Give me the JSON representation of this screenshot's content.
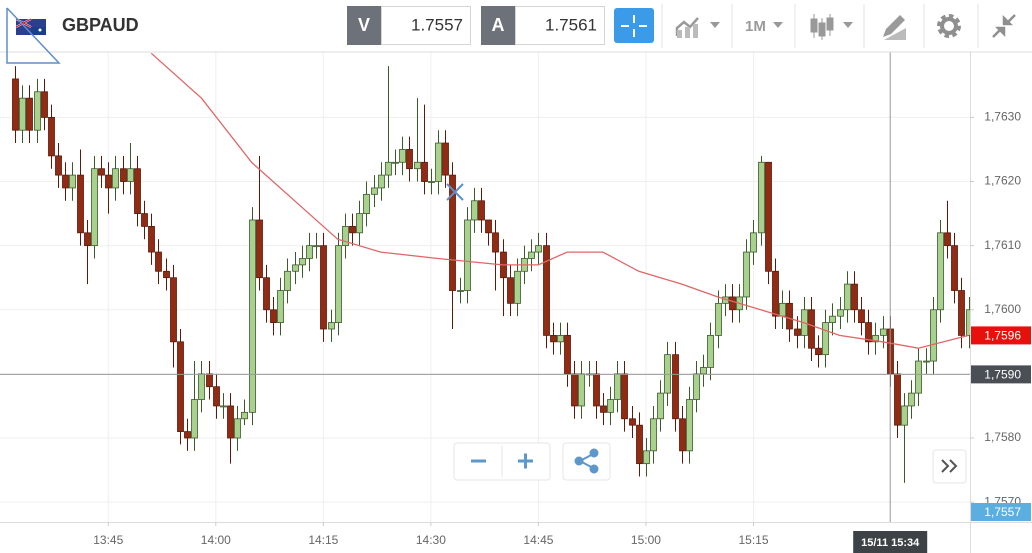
{
  "header": {
    "symbol": "GBPAUD",
    "bid_label": "V",
    "bid": 1.7557,
    "ask_label": "A",
    "ask": 1.7561,
    "timeframe": "1M"
  },
  "chart_data": {
    "type": "candlestick",
    "open": [
      1.7636,
      1.7628,
      1.7633,
      1.7628,
      1.7634,
      1.763,
      1.7624,
      1.7621,
      1.7619,
      1.7621,
      1.7612,
      1.761,
      1.7622,
      1.7621,
      1.7619,
      1.7622,
      1.762,
      1.7622,
      1.7615,
      1.7613,
      1.7609,
      1.7606,
      1.7605,
      1.7595,
      1.7581,
      1.758,
      1.7586,
      1.759,
      1.7588,
      1.7585,
      1.7585,
      1.758,
      1.7583,
      1.7584,
      1.7614,
      1.7605,
      1.76,
      1.7598,
      1.7603,
      1.7606,
      1.7607,
      1.7608,
      1.761,
      1.761,
      1.7597,
      1.7598,
      1.761,
      1.7613,
      1.7612,
      1.7615,
      1.7618,
      1.7619,
      1.7621,
      1.7623,
      1.7623,
      1.7625,
      1.7622,
      1.7623,
      1.762,
      1.762,
      1.7626,
      1.7621,
      1.7603,
      1.7603,
      1.7614,
      1.7617,
      1.7614,
      1.7612,
      1.7609,
      1.7605,
      1.7601,
      1.7606,
      1.7608,
      1.7609,
      1.761,
      1.7596,
      1.7595,
      1.7596,
      1.759,
      1.7585,
      1.759,
      1.759,
      1.7585,
      1.7584,
      1.7586,
      1.759,
      1.7583,
      1.7582,
      1.7576,
      1.7578,
      1.7583,
      1.7587,
      1.7593,
      1.7583,
      1.7578,
      1.7586,
      1.759,
      1.7591,
      1.7596,
      1.7601,
      1.7602,
      1.76,
      1.7602,
      1.7609,
      1.7612,
      1.7623,
      1.7606,
      1.7599,
      1.7601,
      1.7597,
      1.7596,
      1.76,
      1.7594,
      1.7593,
      1.7598,
      1.7599,
      1.76,
      1.7604,
      1.76,
      1.7598,
      1.7595,
      1.7596,
      1.7597,
      1.759,
      1.7582,
      1.7585,
      1.7587,
      1.7592,
      1.7592,
      1.76,
      1.7612,
      1.761,
      1.7603,
      1.7596
    ],
    "high": [
      1.7638,
      1.7635,
      1.7635,
      1.7636,
      1.7636,
      1.7632,
      1.7626,
      1.7623,
      1.7623,
      1.7625,
      1.7614,
      1.7624,
      1.7624,
      1.7623,
      1.7624,
      1.7624,
      1.7626,
      1.7624,
      1.7617,
      1.7615,
      1.7611,
      1.7608,
      1.7607,
      1.7597,
      1.7583,
      1.7592,
      1.7592,
      1.7592,
      1.759,
      1.7587,
      1.7587,
      1.7585,
      1.7586,
      1.7616,
      1.7624,
      1.7607,
      1.7602,
      1.7605,
      1.7608,
      1.7609,
      1.761,
      1.7612,
      1.7612,
      1.7612,
      1.76,
      1.7612,
      1.7615,
      1.7615,
      1.7617,
      1.762,
      1.7621,
      1.7623,
      1.7638,
      1.7625,
      1.7627,
      1.7627,
      1.7633,
      1.7632,
      1.7622,
      1.7628,
      1.7628,
      1.7623,
      1.7605,
      1.7616,
      1.7619,
      1.7619,
      1.7614,
      1.7614,
      1.7611,
      1.7607,
      1.7608,
      1.761,
      1.7611,
      1.7612,
      1.7612,
      1.7598,
      1.7598,
      1.7598,
      1.7592,
      1.7592,
      1.7592,
      1.7592,
      1.7587,
      1.7588,
      1.7592,
      1.7592,
      1.7585,
      1.7584,
      1.758,
      1.7585,
      1.7589,
      1.7595,
      1.7595,
      1.7585,
      1.7588,
      1.7592,
      1.7593,
      1.7598,
      1.7603,
      1.7604,
      1.7604,
      1.7604,
      1.7611,
      1.7614,
      1.7624,
      1.7623,
      1.7608,
      1.7603,
      1.7603,
      1.7599,
      1.7602,
      1.7602,
      1.7596,
      1.76,
      1.7601,
      1.7602,
      1.7606,
      1.7606,
      1.7602,
      1.76,
      1.7598,
      1.7599,
      1.7599,
      1.7592,
      1.7587,
      1.7589,
      1.7594,
      1.7594,
      1.7602,
      1.7614,
      1.7617,
      1.7612,
      1.7605,
      1.7602
    ],
    "low": [
      1.7626,
      1.7626,
      1.7626,
      1.7626,
      1.7628,
      1.7622,
      1.7619,
      1.7617,
      1.7617,
      1.761,
      1.7604,
      1.7608,
      1.7619,
      1.7615,
      1.7617,
      1.7618,
      1.7618,
      1.7613,
      1.7611,
      1.7607,
      1.7604,
      1.7603,
      1.7591,
      1.7579,
      1.7578,
      1.7578,
      1.7584,
      1.7586,
      1.7583,
      1.7583,
      1.7576,
      1.7578,
      1.7582,
      1.7582,
      1.7603,
      1.7598,
      1.7596,
      1.7596,
      1.7601,
      1.7604,
      1.7605,
      1.7606,
      1.7608,
      1.7595,
      1.7595,
      1.7596,
      1.7608,
      1.761,
      1.761,
      1.7613,
      1.7616,
      1.7617,
      1.7619,
      1.7621,
      1.7621,
      1.762,
      1.762,
      1.7618,
      1.7618,
      1.7618,
      1.7619,
      1.7597,
      1.7601,
      1.7601,
      1.7612,
      1.7612,
      1.761,
      1.7603,
      1.7599,
      1.7599,
      1.7599,
      1.7604,
      1.7606,
      1.7607,
      1.7594,
      1.7593,
      1.7593,
      1.7588,
      1.7583,
      1.7583,
      1.7588,
      1.7583,
      1.7582,
      1.7582,
      1.7584,
      1.7581,
      1.758,
      1.7574,
      1.7574,
      1.7576,
      1.7581,
      1.7585,
      1.7581,
      1.7576,
      1.7576,
      1.7584,
      1.7588,
      1.7589,
      1.7594,
      1.7599,
      1.7598,
      1.7598,
      1.76,
      1.7607,
      1.761,
      1.7604,
      1.7597,
      1.7597,
      1.7595,
      1.7594,
      1.7594,
      1.7592,
      1.7591,
      1.7591,
      1.7596,
      1.7597,
      1.7598,
      1.7598,
      1.7596,
      1.7593,
      1.7593,
      1.7594,
      1.7588,
      1.758,
      1.7573,
      1.7583,
      1.7585,
      1.759,
      1.759,
      1.7598,
      1.7608,
      1.7601,
      1.7594,
      1.7594
    ],
    "close": [
      1.7628,
      1.7633,
      1.7628,
      1.7634,
      1.763,
      1.7624,
      1.7621,
      1.7619,
      1.7621,
      1.7612,
      1.761,
      1.7622,
      1.7621,
      1.7619,
      1.7622,
      1.762,
      1.7622,
      1.7615,
      1.7613,
      1.7609,
      1.7606,
      1.7605,
      1.7595,
      1.7581,
      1.758,
      1.7586,
      1.759,
      1.7588,
      1.7585,
      1.7585,
      1.758,
      1.7583,
      1.7584,
      1.7614,
      1.7605,
      1.76,
      1.7598,
      1.7603,
      1.7606,
      1.7607,
      1.7608,
      1.761,
      1.761,
      1.7597,
      1.7598,
      1.761,
      1.7613,
      1.7612,
      1.7615,
      1.7618,
      1.7619,
      1.7621,
      1.7623,
      1.7623,
      1.7625,
      1.7622,
      1.7623,
      1.762,
      1.762,
      1.7626,
      1.7621,
      1.7603,
      1.7603,
      1.7614,
      1.7617,
      1.7614,
      1.7612,
      1.7609,
      1.7605,
      1.7601,
      1.7606,
      1.7608,
      1.7609,
      1.761,
      1.7596,
      1.7595,
      1.7596,
      1.759,
      1.7585,
      1.759,
      1.759,
      1.7585,
      1.7584,
      1.7586,
      1.759,
      1.7583,
      1.7582,
      1.7576,
      1.7578,
      1.7583,
      1.7587,
      1.7593,
      1.7583,
      1.7578,
      1.7586,
      1.759,
      1.7591,
      1.7596,
      1.7601,
      1.7602,
      1.76,
      1.7602,
      1.7609,
      1.7612,
      1.7623,
      1.7606,
      1.7599,
      1.7601,
      1.7597,
      1.7596,
      1.76,
      1.7594,
      1.7593,
      1.7598,
      1.7599,
      1.76,
      1.7604,
      1.76,
      1.7598,
      1.7595,
      1.7596,
      1.7597,
      1.759,
      1.7582,
      1.7585,
      1.7587,
      1.7592,
      1.7592,
      1.76,
      1.7612,
      1.761,
      1.7603,
      1.7596,
      1.76
    ],
    "up_color": "#a9d18e",
    "down_color": "#922b14",
    "xlim": [
      -2.1,
      133.2
    ],
    "xticks": [
      {
        "value": 13,
        "label": "13:45"
      },
      {
        "value": 28,
        "label": "14:00"
      },
      {
        "value": 43,
        "label": "14:15"
      },
      {
        "value": 58,
        "label": "14:30"
      },
      {
        "value": 73,
        "label": "14:45"
      },
      {
        "value": 88,
        "label": "15:00"
      },
      {
        "value": 103,
        "label": "15:15"
      }
    ],
    "ylim": [
      1.75669,
      1.76402
    ],
    "yticks": [
      {
        "value": 1.757,
        "label": "1,7570"
      },
      {
        "value": 1.758,
        "label": "1,7580"
      },
      {
        "value": 1.759,
        "label": "1,7590"
      },
      {
        "value": 1.76,
        "label": "1,7600"
      },
      {
        "value": 1.761,
        "label": "1,7610"
      },
      {
        "value": 1.762,
        "label": "1,7620"
      },
      {
        "value": 1.763,
        "label": "1,7630"
      }
    ],
    "grid": true,
    "moving_average": {
      "color": "#e06666",
      "x": [
        19,
        26,
        33,
        40,
        45,
        51,
        59,
        68,
        73,
        77,
        82,
        87,
        93,
        98,
        104,
        110,
        115,
        121,
        126,
        133
      ],
      "values": [
        1.764,
        1.7633,
        1.7623,
        1.7616,
        1.7611,
        1.7609,
        1.7608,
        1.7607,
        1.7607,
        1.7609,
        1.7609,
        1.7606,
        1.7604,
        1.7602,
        1.76,
        1.7598,
        1.7596,
        1.7595,
        1.7594,
        1.7596
      ]
    },
    "price_labels": [
      {
        "value": 1.7596,
        "label": "1,7596",
        "color": "#e8100c"
      },
      {
        "value": 1.7557,
        "label": "1,7557",
        "color": "#5aaee0"
      }
    ],
    "crosshair": {
      "x": 122,
      "y": 1.759,
      "y_label": "1,7590",
      "x_label": "15/11 15:34"
    }
  }
}
